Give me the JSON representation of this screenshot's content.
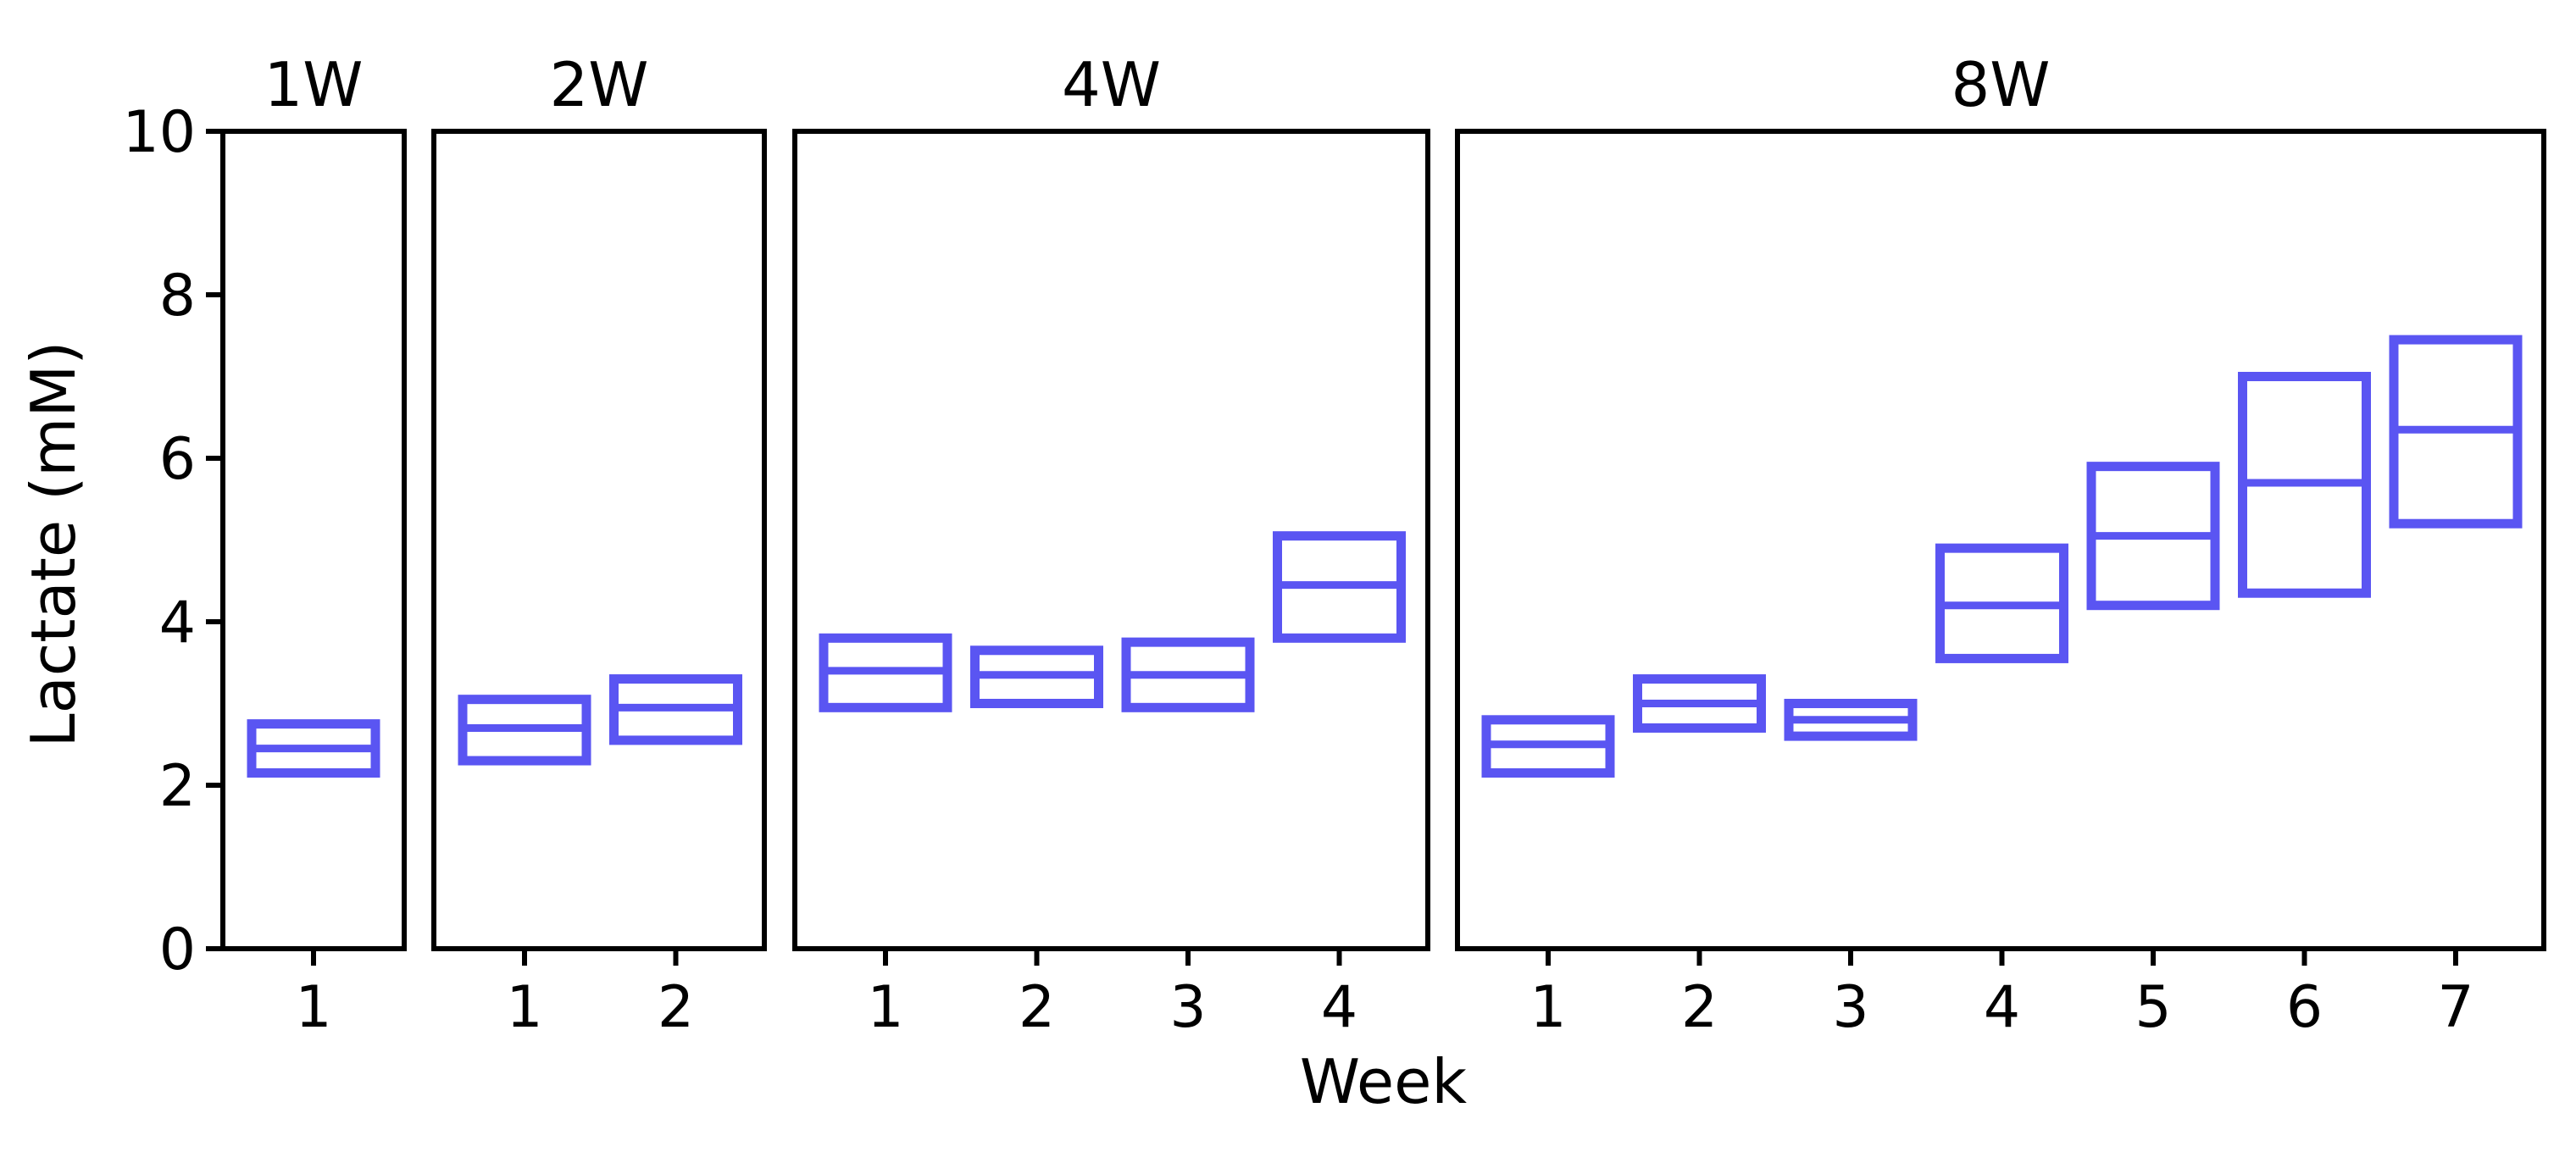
{
  "chart_data": {
    "type": "box",
    "xlabel": "Week",
    "ylabel": "Lactate (mM)",
    "ylim": [
      0,
      10
    ],
    "yticks": [
      0,
      2,
      4,
      6,
      8,
      10
    ],
    "box_color": "#5a55f2",
    "frame_color": "#000000",
    "grid": false,
    "panels": [
      {
        "title": "1W",
        "categories": [
          "1"
        ],
        "boxes": [
          {
            "x": "1",
            "q1": 2.15,
            "median": 2.45,
            "q3": 2.75
          }
        ]
      },
      {
        "title": "2W",
        "categories": [
          "1",
          "2"
        ],
        "boxes": [
          {
            "x": "1",
            "q1": 2.3,
            "median": 2.7,
            "q3": 3.05
          },
          {
            "x": "2",
            "q1": 2.55,
            "median": 2.95,
            "q3": 3.3
          }
        ]
      },
      {
        "title": "4W",
        "categories": [
          "1",
          "2",
          "3",
          "4"
        ],
        "boxes": [
          {
            "x": "1",
            "q1": 2.95,
            "median": 3.4,
            "q3": 3.8
          },
          {
            "x": "2",
            "q1": 3.0,
            "median": 3.35,
            "q3": 3.65
          },
          {
            "x": "3",
            "q1": 2.95,
            "median": 3.35,
            "q3": 3.75
          },
          {
            "x": "4",
            "q1": 3.8,
            "median": 4.45,
            "q3": 5.05
          }
        ]
      },
      {
        "title": "8W",
        "categories": [
          "1",
          "2",
          "3",
          "4",
          "5",
          "6",
          "7"
        ],
        "boxes": [
          {
            "x": "1",
            "q1": 2.15,
            "median": 2.5,
            "q3": 2.8
          },
          {
            "x": "2",
            "q1": 2.7,
            "median": 3.0,
            "q3": 3.3
          },
          {
            "x": "3",
            "q1": 2.6,
            "median": 2.8,
            "q3": 3.0
          },
          {
            "x": "4",
            "q1": 3.55,
            "median": 4.2,
            "q3": 4.9
          },
          {
            "x": "5",
            "q1": 4.2,
            "median": 5.05,
            "q3": 5.9
          },
          {
            "x": "6",
            "q1": 4.35,
            "median": 5.7,
            "q3": 7.0
          },
          {
            "x": "7",
            "q1": 5.2,
            "median": 6.35,
            "q3": 7.45
          }
        ]
      }
    ]
  }
}
